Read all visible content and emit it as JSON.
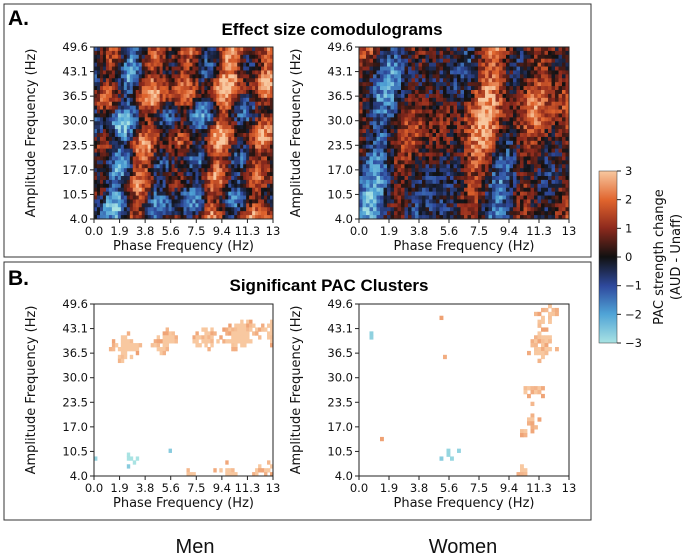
{
  "chart_data": {
    "type": "heatmap",
    "panels": [
      {
        "letter": "A.",
        "title": "Effect size comodulograms",
        "mode": "full",
        "plots": [
          {
            "group": "Men",
            "xlabel": "Phase Frequency (Hz)",
            "ylabel": "Amplitude Frequency (Hz)"
          },
          {
            "group": "Women",
            "xlabel": "Phase Frequency (Hz)",
            "ylabel": "Amplitude Frequency (Hz)"
          }
        ]
      },
      {
        "letter": "B.",
        "title": "Significant PAC Clusters",
        "mode": "clusters",
        "plots": [
          {
            "group": "Men",
            "xlabel": "Phase Frequency (Hz)",
            "ylabel": "Amplitude Frequency (Hz)"
          },
          {
            "group": "Women",
            "xlabel": "Phase Frequency (Hz)",
            "ylabel": "Amplitude Frequency (Hz)"
          }
        ]
      }
    ],
    "xlim": [
      0,
      13
    ],
    "ylim": [
      4.0,
      49.6
    ],
    "x_ticks": [
      "0.0",
      "1.9",
      "3.8",
      "5.6",
      "7.5",
      "9.4",
      "11.3",
      "13"
    ],
    "y_ticks": [
      "4.0",
      "10.5",
      "17.0",
      "23.5",
      "30.0",
      "36.5",
      "43.1",
      "49.6"
    ],
    "colorbar": {
      "label_line1": "PAC strength change",
      "label_line2": "(AUD - Unaff)",
      "min": -3,
      "max": 3,
      "ticks": [
        "3",
        "2",
        "1",
        "0",
        "−1",
        "−2",
        "−3"
      ],
      "colors": [
        "#a9e3e3",
        "#4fa3d6",
        "#2f4a9e",
        "#111111",
        "#8e2a1d",
        "#e0642d",
        "#f8c8a0"
      ]
    },
    "group_labels": [
      "Men",
      "Women"
    ]
  }
}
